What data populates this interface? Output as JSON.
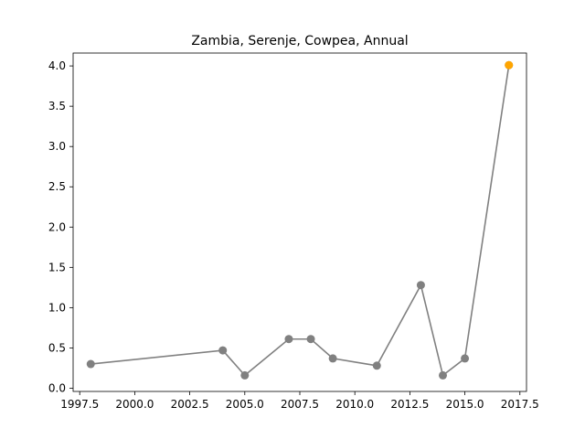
{
  "chart_data": {
    "type": "line",
    "title": "Zambia, Serenje, Cowpea, Annual",
    "xlabel": "",
    "ylabel": "",
    "xlim": [
      1997.2,
      2017.8
    ],
    "ylim": [
      -0.04,
      4.16
    ],
    "x_ticks": [
      1997.5,
      2000.0,
      2002.5,
      2005.0,
      2007.5,
      2010.0,
      2012.5,
      2015.0,
      2017.5
    ],
    "x_tick_labels": [
      "1997.5",
      "2000.0",
      "2002.5",
      "2005.0",
      "2007.5",
      "2010.0",
      "2012.5",
      "2015.0",
      "2017.5"
    ],
    "y_ticks": [
      0.0,
      0.5,
      1.0,
      1.5,
      2.0,
      2.5,
      3.0,
      3.5,
      4.0
    ],
    "y_tick_labels": [
      "0.0",
      "0.5",
      "1.0",
      "1.5",
      "2.0",
      "2.5",
      "3.0",
      "3.5",
      "4.0"
    ],
    "grid": false,
    "series": [
      {
        "color": "#808080",
        "x": [
          1998,
          2004,
          2005,
          2007,
          2008,
          2009,
          2011,
          2013,
          2014,
          2015,
          2017
        ],
        "y": [
          0.3,
          0.47,
          0.16,
          0.61,
          0.61,
          0.37,
          0.28,
          1.28,
          0.16,
          0.37,
          4.01
        ]
      }
    ],
    "highlight": {
      "x": 2017,
      "y": 4.01,
      "color": "#ffa500"
    }
  }
}
